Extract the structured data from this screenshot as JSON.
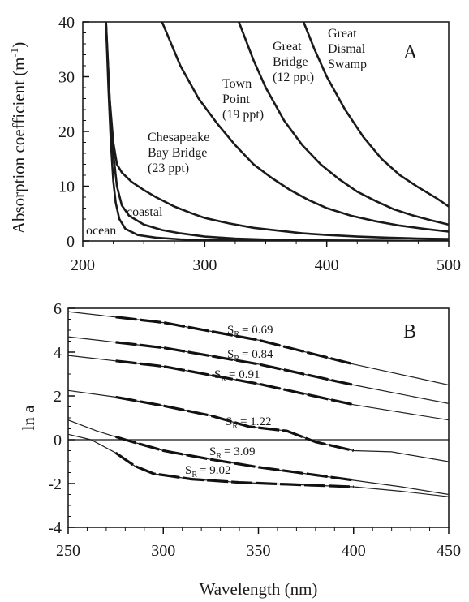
{
  "chart_data": [
    {
      "panel": "A",
      "type": "line",
      "ylabel": "Absorption coefficient (m",
      "ylabel_superscript": "-1",
      "ylabel_close": ")",
      "xlim": [
        200,
        500
      ],
      "ylim": [
        0,
        40
      ],
      "xticks": [
        200,
        300,
        400,
        500
      ],
      "yticks": [
        0,
        10,
        20,
        30,
        40
      ],
      "tick_labels_x": [
        "200",
        "300",
        "400",
        "500"
      ],
      "tick_labels_y": [
        "0",
        "10",
        "20",
        "30",
        "40"
      ],
      "grid": false,
      "series": [
        {
          "label_lines": [
            "ocean"
          ],
          "points": [
            [
              219,
              40
            ],
            [
              221,
              28
            ],
            [
              223,
              18
            ],
            [
              225,
              11
            ],
            [
              227,
              7
            ],
            [
              230,
              4
            ],
            [
              235,
              2.2
            ],
            [
              245,
              1.1
            ],
            [
              260,
              0.6
            ],
            [
              280,
              0.3
            ],
            [
              300,
              0.15
            ],
            [
              350,
              0.05
            ],
            [
              400,
              0.02
            ],
            [
              450,
              0.01
            ],
            [
              500,
              0.0
            ]
          ]
        },
        {
          "label_lines": [
            "coastal"
          ],
          "points": [
            [
              219,
              40
            ],
            [
              222,
              26
            ],
            [
              225,
              16
            ],
            [
              228,
              10
            ],
            [
              232,
              6.5
            ],
            [
              238,
              4.6
            ],
            [
              250,
              3.0
            ],
            [
              265,
              2.0
            ],
            [
              280,
              1.4
            ],
            [
              300,
              0.8
            ],
            [
              325,
              0.45
            ],
            [
              350,
              0.25
            ],
            [
              400,
              0.1
            ],
            [
              450,
              0.05
            ],
            [
              500,
              0.02
            ]
          ]
        },
        {
          "label_lines": [
            "Chesapeake",
            "Bay Bridge",
            "(23 ppt)"
          ],
          "points": [
            [
              219,
              40
            ],
            [
              222,
              26
            ],
            [
              225,
              18
            ],
            [
              228,
              14
            ],
            [
              232,
              12.5
            ],
            [
              240,
              10.8
            ],
            [
              250,
              9.3
            ],
            [
              260,
              8.0
            ],
            [
              275,
              6.3
            ],
            [
              290,
              5.0
            ],
            [
              300,
              4.2
            ],
            [
              320,
              3.2
            ],
            [
              340,
              2.4
            ],
            [
              360,
              1.9
            ],
            [
              380,
              1.4
            ],
            [
              400,
              1.1
            ],
            [
              425,
              0.8
            ],
            [
              450,
              0.6
            ],
            [
              475,
              0.45
            ],
            [
              500,
              0.35
            ]
          ]
        },
        {
          "label_lines": [
            "Town",
            "Point",
            "(19 ppt)"
          ],
          "points": [
            [
              265,
              40
            ],
            [
              280,
              32
            ],
            [
              295,
              26
            ],
            [
              310,
              21.5
            ],
            [
              325,
              17.5
            ],
            [
              340,
              14.0
            ],
            [
              355,
              11.5
            ],
            [
              370,
              9.3
            ],
            [
              385,
              7.5
            ],
            [
              400,
              6.0
            ],
            [
              420,
              4.6
            ],
            [
              440,
              3.6
            ],
            [
              460,
              2.8
            ],
            [
              480,
              2.2
            ],
            [
              500,
              1.7
            ]
          ]
        },
        {
          "label_lines": [
            "Great",
            "Bridge",
            "(12 ppt)"
          ],
          "points": [
            [
              328,
              40
            ],
            [
              340,
              33
            ],
            [
              350,
              28
            ],
            [
              365,
              22
            ],
            [
              380,
              17.5
            ],
            [
              395,
              14.0
            ],
            [
              410,
              11.3
            ],
            [
              425,
              9.0
            ],
            [
              440,
              7.3
            ],
            [
              455,
              5.8
            ],
            [
              470,
              4.7
            ],
            [
              485,
              3.8
            ],
            [
              500,
              3.0
            ]
          ]
        },
        {
          "label_lines": [
            "Great",
            "Dismal",
            "Swamp"
          ],
          "points": [
            [
              381,
              40
            ],
            [
              390,
              35
            ],
            [
              400,
              30
            ],
            [
              415,
              24
            ],
            [
              430,
              19
            ],
            [
              445,
              15
            ],
            [
              460,
              12
            ],
            [
              475,
              9.8
            ],
            [
              490,
              7.8
            ],
            [
              500,
              6.3
            ]
          ]
        }
      ]
    },
    {
      "panel": "B",
      "type": "line",
      "xlabel": "Wavelength (nm)",
      "ylabel": "ln a",
      "xlim": [
        250,
        450
      ],
      "ylim": [
        -4,
        6
      ],
      "xticks": [
        250,
        300,
        350,
        400,
        450
      ],
      "yticks": [
        -4,
        -2,
        0,
        2,
        4,
        6
      ],
      "tick_labels_x": [
        "250",
        "300",
        "350",
        "400",
        "450"
      ],
      "tick_labels_y": [
        "-4",
        "-2",
        "0",
        "2",
        "4",
        "6"
      ],
      "grid": false,
      "zero_line": true,
      "series": [
        {
          "sr_prefix": "S",
          "sr_sub": "R",
          "sr_value": "= 0.69",
          "points": [
            [
              250,
              5.85
            ],
            [
              300,
              5.35
            ],
            [
              350,
              4.55
            ],
            [
              400,
              3.45
            ],
            [
              450,
              2.5
            ]
          ],
          "fit_range": [
            275,
            400
          ]
        },
        {
          "sr_prefix": "S",
          "sr_sub": "R",
          "sr_value": "= 0.84",
          "points": [
            [
              250,
              4.7
            ],
            [
              300,
              4.2
            ],
            [
              350,
              3.45
            ],
            [
              400,
              2.5
            ],
            [
              450,
              1.65
            ]
          ],
          "fit_range": [
            275,
            400
          ]
        },
        {
          "sr_prefix": "S",
          "sr_sub": "R",
          "sr_value": "= 0.91",
          "points": [
            [
              250,
              3.85
            ],
            [
              300,
              3.35
            ],
            [
              350,
              2.55
            ],
            [
              400,
              1.6
            ],
            [
              450,
              0.9
            ]
          ],
          "fit_range": [
            275,
            400
          ]
        },
        {
          "sr_prefix": "S",
          "sr_sub": "R",
          "sr_value": "= 1.22",
          "points": [
            [
              250,
              2.25
            ],
            [
              275,
              1.95
            ],
            [
              300,
              1.55
            ],
            [
              325,
              1.1
            ],
            [
              345,
              0.6
            ],
            [
              365,
              0.4
            ],
            [
              380,
              -0.1
            ],
            [
              400,
              -0.5
            ],
            [
              420,
              -0.55
            ],
            [
              440,
              -0.85
            ],
            [
              450,
              -1.0
            ]
          ],
          "fit_range": [
            275,
            400
          ]
        },
        {
          "sr_prefix": "S",
          "sr_sub": "R",
          "sr_value": "= 3.09",
          "points": [
            [
              250,
              0.9
            ],
            [
              265,
              0.4
            ],
            [
              280,
              0.0
            ],
            [
              300,
              -0.5
            ],
            [
              325,
              -0.9
            ],
            [
              350,
              -1.25
            ],
            [
              375,
              -1.55
            ],
            [
              400,
              -1.85
            ],
            [
              425,
              -2.15
            ],
            [
              450,
              -2.5
            ]
          ],
          "fit_range": [
            275,
            400
          ]
        },
        {
          "sr_prefix": "S",
          "sr_sub": "R",
          "sr_value": "= 9.02",
          "points": [
            [
              250,
              0.25
            ],
            [
              262,
              0.0
            ],
            [
              275,
              -0.6
            ],
            [
              285,
              -1.2
            ],
            [
              295,
              -1.55
            ],
            [
              315,
              -1.8
            ],
            [
              340,
              -1.95
            ],
            [
              370,
              -2.05
            ],
            [
              400,
              -2.15
            ],
            [
              425,
              -2.35
            ],
            [
              450,
              -2.6
            ]
          ],
          "fit_range": [
            275,
            400
          ]
        }
      ]
    }
  ]
}
